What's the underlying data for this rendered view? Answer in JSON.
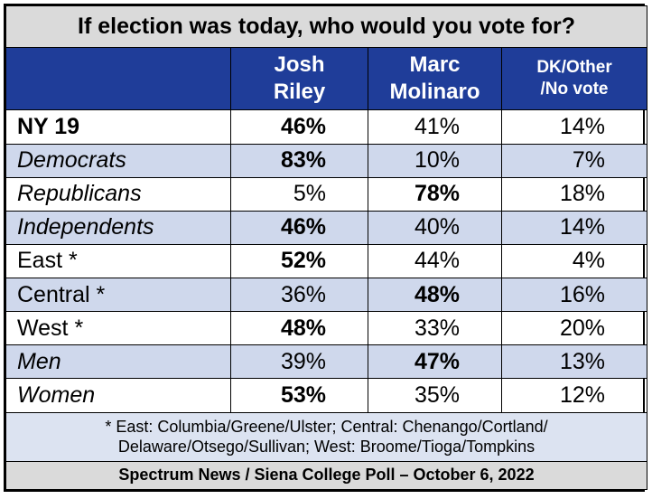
{
  "chart_data": {
    "type": "table",
    "title": "If election was today, who would you vote for?",
    "columns": [
      "",
      "Josh Riley",
      "Marc Molinaro",
      "DK/Other /No vote"
    ],
    "header_lines": {
      "riley": [
        "Josh",
        "Riley"
      ],
      "molinaro": [
        "Marc",
        "Molinaro"
      ],
      "dk": [
        "DK/Other",
        "/No vote"
      ]
    },
    "rows": [
      {
        "label": "NY 19",
        "riley": "46%",
        "molinaro": "41%",
        "dk": "14%",
        "bold_col": "riley",
        "label_style": "bold",
        "shaded": false
      },
      {
        "label": "Democrats",
        "riley": "83%",
        "molinaro": "10%",
        "dk": "7%",
        "bold_col": "riley",
        "label_style": "italic",
        "shaded": true
      },
      {
        "label": "Republicans",
        "riley": "5%",
        "molinaro": "78%",
        "dk": "18%",
        "bold_col": "molinaro",
        "label_style": "italic",
        "shaded": false
      },
      {
        "label": "Independents",
        "riley": "46%",
        "molinaro": "40%",
        "dk": "14%",
        "bold_col": "riley",
        "label_style": "italic",
        "shaded": true
      },
      {
        "label": "East *",
        "riley": "52%",
        "molinaro": "44%",
        "dk": "4%",
        "bold_col": "riley",
        "label_style": "normal",
        "shaded": false
      },
      {
        "label": "Central *",
        "riley": "36%",
        "molinaro": "48%",
        "dk": "16%",
        "bold_col": "molinaro",
        "label_style": "normal",
        "shaded": true
      },
      {
        "label": "West *",
        "riley": "48%",
        "molinaro": "33%",
        "dk": "20%",
        "bold_col": "riley",
        "label_style": "normal",
        "shaded": false
      },
      {
        "label": "Men",
        "riley": "39%",
        "molinaro": "47%",
        "dk": "13%",
        "bold_col": "molinaro",
        "label_style": "italic",
        "shaded": true
      },
      {
        "label": "Women",
        "riley": "53%",
        "molinaro": "35%",
        "dk": "12%",
        "bold_col": "riley",
        "label_style": "italic",
        "shaded": false
      }
    ],
    "footnote": [
      "* East: Columbia/Greene/Ulster; Central: Chenango/Cortland/",
      "Delaware/Otsego/Sullivan; West: Broome/Tioga/Tompkins"
    ],
    "source": "Spectrum News / Siena College Poll – October 6, 2022",
    "colors": {
      "header_bg": "#1f3d99",
      "alt_row_bg": "#cfd8ec",
      "title_bg": "#dadada"
    }
  }
}
